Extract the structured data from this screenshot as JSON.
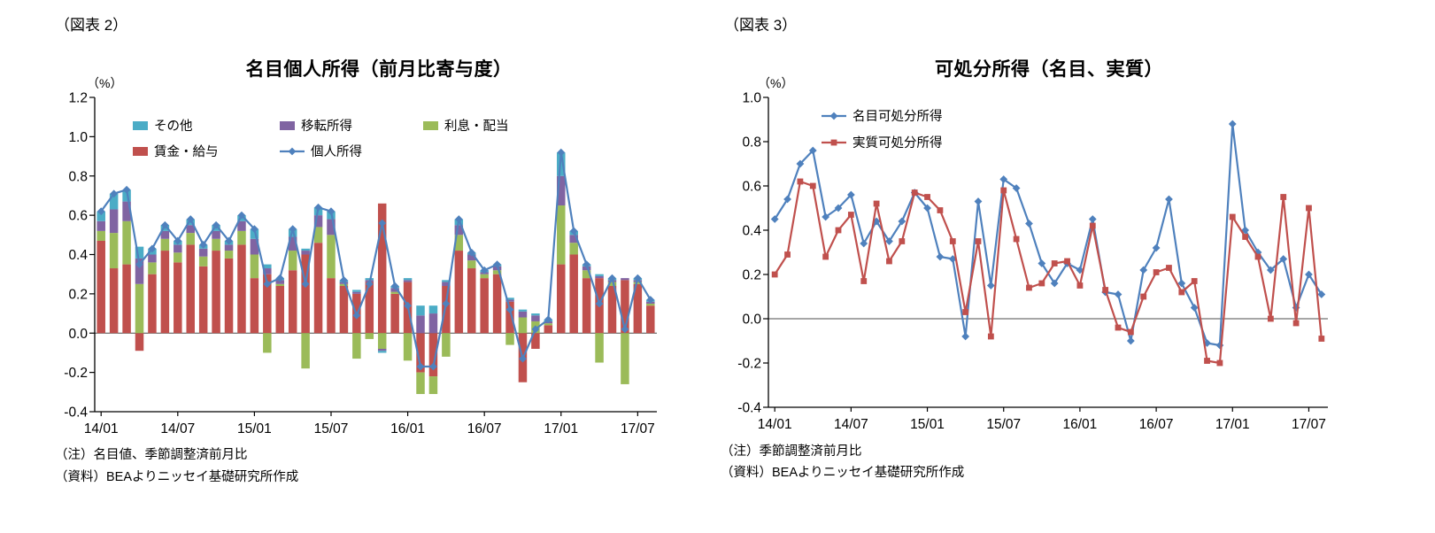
{
  "chart_data": [
    {
      "id": "figure2",
      "type": "bar",
      "subtype": "stacked-bar-with-line",
      "tag": "（図表 2）",
      "title": "名目個人所得（前月比寄与度）",
      "unit": "（%）",
      "ylim": [
        -0.4,
        1.2
      ],
      "ytick_step": 0.2,
      "grid": false,
      "legend_position": "top-inside",
      "categories": [
        "14/01",
        "14/02",
        "14/03",
        "14/04",
        "14/05",
        "14/06",
        "14/07",
        "14/08",
        "14/09",
        "14/10",
        "14/11",
        "14/12",
        "15/01",
        "15/02",
        "15/03",
        "15/04",
        "15/05",
        "15/06",
        "15/07",
        "15/08",
        "15/09",
        "15/10",
        "15/11",
        "15/12",
        "16/01",
        "16/02",
        "16/03",
        "16/04",
        "16/05",
        "16/06",
        "16/07",
        "16/08",
        "16/09",
        "16/10",
        "16/11",
        "16/12",
        "17/01",
        "17/02",
        "17/03",
        "17/04",
        "17/05",
        "17/06",
        "17/07",
        "17/08"
      ],
      "xtick_labels": [
        "14/01",
        "14/07",
        "15/01",
        "15/07",
        "16/01",
        "16/07",
        "17/01",
        "17/07"
      ],
      "bar_series": [
        {
          "key": "wages",
          "name": "賃金・給与",
          "color": "#C0504D",
          "values": [
            0.47,
            0.33,
            0.35,
            -0.09,
            0.3,
            0.42,
            0.36,
            0.45,
            0.34,
            0.42,
            0.38,
            0.45,
            0.28,
            0.3,
            0.24,
            0.32,
            0.4,
            0.46,
            0.28,
            0.24,
            0.2,
            0.26,
            0.66,
            0.2,
            0.26,
            -0.2,
            -0.22,
            0.24,
            0.42,
            0.33,
            0.28,
            0.3,
            0.16,
            -0.25,
            -0.08,
            0.04,
            0.35,
            0.4,
            0.28,
            0.28,
            0.24,
            0.27,
            0.25,
            0.14
          ]
        },
        {
          "key": "interest-dividends",
          "name": "利息・配当",
          "color": "#9BBB59",
          "values": [
            0.05,
            0.18,
            0.22,
            0.25,
            0.06,
            0.06,
            0.05,
            0.06,
            0.05,
            0.06,
            0.04,
            0.07,
            0.12,
            -0.1,
            0.01,
            0.1,
            -0.18,
            0.08,
            0.22,
            0.01,
            -0.13,
            -0.03,
            -0.08,
            0.01,
            -0.14,
            -0.11,
            -0.09,
            -0.12,
            0.08,
            0.04,
            0.02,
            0.02,
            -0.06,
            0.08,
            0.06,
            0.01,
            0.3,
            0.06,
            0.04,
            -0.15,
            0.02,
            -0.26,
            0.01,
            0.01
          ]
        },
        {
          "key": "transfer-income",
          "name": "移転所得",
          "color": "#8064A2",
          "values": [
            0.05,
            0.12,
            0.1,
            0.13,
            0.04,
            0.04,
            0.04,
            0.04,
            0.04,
            0.04,
            0.03,
            0.05,
            0.08,
            0.03,
            0.02,
            0.07,
            0.02,
            0.06,
            0.08,
            0.01,
            0.01,
            0.01,
            -0.01,
            0.02,
            0.01,
            0.09,
            0.1,
            0.02,
            0.05,
            0.03,
            0.01,
            0.02,
            0.01,
            0.03,
            0.03,
            0.01,
            0.15,
            0.04,
            0.02,
            0.01,
            0.01,
            0.01,
            0.01,
            0.01
          ]
        },
        {
          "key": "other",
          "name": "その他",
          "color": "#4BACC6",
          "values": [
            0.05,
            0.08,
            0.06,
            0.06,
            0.03,
            0.03,
            0.02,
            0.03,
            0.02,
            0.03,
            0.02,
            0.03,
            0.05,
            0.02,
            0.01,
            0.04,
            0.01,
            0.04,
            0.04,
            0.01,
            0.01,
            0.01,
            -0.01,
            0.01,
            0.01,
            0.05,
            0.04,
            0.01,
            0.03,
            0.01,
            0.01,
            0.01,
            0.01,
            0.01,
            0.01,
            0.01,
            0.12,
            0.02,
            0.01,
            0.01,
            0.01,
            0,
            0.01,
            0.01
          ]
        }
      ],
      "line_series": [
        {
          "key": "personal-income",
          "name": "個人所得",
          "color": "#4F81BD",
          "marker": "diamond",
          "values": [
            0.62,
            0.71,
            0.73,
            0.35,
            0.43,
            0.55,
            0.47,
            0.58,
            0.45,
            0.55,
            0.47,
            0.6,
            0.53,
            0.25,
            0.28,
            0.53,
            0.25,
            0.64,
            0.62,
            0.27,
            0.09,
            0.25,
            0.56,
            0.24,
            0.14,
            -0.17,
            -0.17,
            0.15,
            0.58,
            0.41,
            0.32,
            0.35,
            0.12,
            -0.13,
            0.02,
            0.07,
            0.92,
            0.52,
            0.35,
            0.15,
            0.28,
            0.02,
            0.28,
            0.17
          ]
        }
      ],
      "notes": [
        "（注）名目値、季節調整済前月比",
        "（資料）BEAよりニッセイ基礎研究所作成"
      ]
    },
    {
      "id": "figure3",
      "type": "line",
      "tag": "（図表 3）",
      "title": "可処分所得（名目、実質）",
      "unit": "（%）",
      "ylim": [
        -0.4,
        1.0
      ],
      "ytick_step": 0.2,
      "grid": false,
      "legend_position": "top-left-inside",
      "categories": [
        "14/01",
        "14/02",
        "14/03",
        "14/04",
        "14/05",
        "14/06",
        "14/07",
        "14/08",
        "14/09",
        "14/10",
        "14/11",
        "14/12",
        "15/01",
        "15/02",
        "15/03",
        "15/04",
        "15/05",
        "15/06",
        "15/07",
        "15/08",
        "15/09",
        "15/10",
        "15/11",
        "15/12",
        "16/01",
        "16/02",
        "16/03",
        "16/04",
        "16/05",
        "16/06",
        "16/07",
        "16/08",
        "16/09",
        "16/10",
        "16/11",
        "16/12",
        "17/01",
        "17/02",
        "17/03",
        "17/04",
        "17/05",
        "17/06",
        "17/07",
        "17/08"
      ],
      "xtick_labels": [
        "14/01",
        "14/07",
        "15/01",
        "15/07",
        "16/01",
        "16/07",
        "17/01",
        "17/07"
      ],
      "line_series": [
        {
          "key": "nominal-disposable-income",
          "name": "名目可処分所得",
          "color": "#4F81BD",
          "marker": "diamond",
          "values": [
            0.45,
            0.54,
            0.7,
            0.76,
            0.46,
            0.5,
            0.56,
            0.34,
            0.44,
            0.35,
            0.44,
            0.57,
            0.5,
            0.28,
            0.27,
            -0.08,
            0.53,
            0.15,
            0.63,
            0.59,
            0.43,
            0.25,
            0.16,
            0.25,
            0.22,
            0.45,
            0.12,
            0.11,
            -0.1,
            0.22,
            0.32,
            0.54,
            0.16,
            0.05,
            -0.11,
            -0.12,
            0.88,
            0.4,
            0.3,
            0.22,
            0.27,
            0.05,
            0.2,
            0.11
          ]
        },
        {
          "key": "real-disposable-income",
          "name": "実質可処分所得",
          "color": "#C0504D",
          "marker": "square",
          "values": [
            0.2,
            0.29,
            0.62,
            0.6,
            0.28,
            0.4,
            0.47,
            0.17,
            0.52,
            0.26,
            0.35,
            0.57,
            0.55,
            0.49,
            0.35,
            0.03,
            0.35,
            -0.08,
            0.58,
            0.36,
            0.14,
            0.16,
            0.25,
            0.26,
            0.15,
            0.42,
            0.13,
            -0.04,
            -0.06,
            0.1,
            0.21,
            0.23,
            0.12,
            0.17,
            -0.19,
            -0.2,
            0.46,
            0.37,
            0.28,
            0.0,
            0.55,
            -0.02,
            0.5,
            -0.09
          ]
        }
      ],
      "notes": [
        "（注）季節調整済前月比",
        "（資料）BEAよりニッセイ基礎研究所作成"
      ]
    }
  ]
}
